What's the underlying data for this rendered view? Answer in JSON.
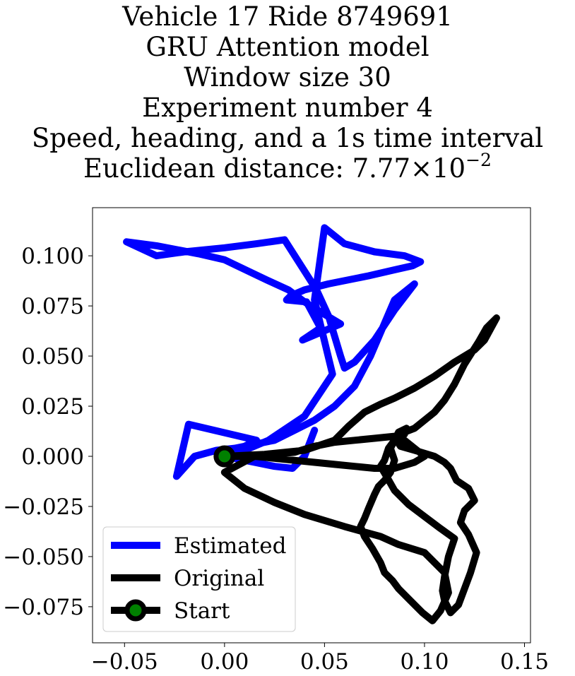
{
  "chart_data": {
    "type": "line",
    "title_lines": [
      "Vehicle 17 Ride 8749691",
      "GRU Attention model",
      "Window size 30",
      "Experiment number 4",
      "Speed, heading, and a 1s time interval"
    ],
    "title_distance_prefix": "Euclidean distance: 7.77×10",
    "title_distance_exponent": "−2",
    "xlim": [
      -0.066,
      0.153
    ],
    "ylim": [
      -0.093,
      0.124
    ],
    "xticks": [
      -0.05,
      0.0,
      0.05,
      0.1,
      0.15
    ],
    "xtick_labels": [
      "−0.05",
      "0.00",
      "0.05",
      "0.10",
      "0.15"
    ],
    "yticks": [
      -0.075,
      -0.05,
      -0.025,
      0.0,
      0.025,
      0.05,
      0.075,
      0.1
    ],
    "ytick_labels": [
      "−0.075",
      "−0.050",
      "−0.025",
      "0.000",
      "0.025",
      "0.050",
      "0.075",
      "0.100"
    ],
    "grid": false,
    "legend_position": "lower-left",
    "series": [
      {
        "name": "Estimated",
        "color": "#0000ff",
        "x": [
          0.0,
          0.01,
          0.022,
          0.04,
          0.054,
          0.045,
          0.05,
          0.06,
          0.075,
          0.09,
          0.098,
          0.094,
          0.085,
          0.072,
          0.052,
          0.04,
          0.033,
          0.031,
          0.041,
          0.048,
          0.039,
          0.058,
          0.048,
          0.04,
          0.032,
          0.021,
          0.0,
          -0.013,
          -0.034,
          -0.049,
          -0.034,
          -0.02,
          0.0,
          0.016,
          0.03,
          0.046,
          0.052,
          0.058,
          0.06,
          0.065,
          0.075,
          0.085,
          0.095,
          0.085,
          0.073,
          0.065,
          0.055,
          0.045,
          0.035,
          0.025,
          0.015,
          0.005,
          -0.004,
          -0.015,
          -0.024,
          -0.018,
          0.016,
          0.0,
          0.015,
          0.025,
          0.034,
          0.04,
          0.045
        ],
        "y": [
          0.0,
          0.003,
          0.008,
          0.02,
          0.041,
          0.078,
          0.114,
          0.106,
          0.102,
          0.1,
          0.097,
          0.095,
          0.093,
          0.09,
          0.086,
          0.083,
          0.08,
          0.078,
          0.077,
          0.064,
          0.058,
          0.066,
          0.072,
          0.077,
          0.083,
          0.088,
          0.098,
          0.101,
          0.105,
          0.107,
          0.1,
          0.102,
          0.104,
          0.106,
          0.108,
          0.083,
          0.07,
          0.05,
          0.044,
          0.047,
          0.058,
          0.073,
          0.086,
          0.078,
          0.05,
          0.035,
          0.025,
          0.018,
          0.013,
          0.008,
          0.006,
          0.004,
          0.003,
          0.0,
          -0.01,
          0.016,
          0.008,
          0.0,
          -0.003,
          -0.005,
          -0.006,
          0.0,
          0.013
        ]
      },
      {
        "name": "Original",
        "color": "#000000",
        "x": [
          0.0,
          0.02,
          0.04,
          0.055,
          0.062,
          0.07,
          0.078,
          0.085,
          0.095,
          0.105,
          0.115,
          0.125,
          0.13,
          0.136,
          0.131,
          0.127,
          0.12,
          0.115,
          0.11,
          0.105,
          0.1,
          0.095,
          0.09,
          0.088,
          0.085,
          0.082,
          0.08,
          0.078,
          0.081,
          0.085,
          0.092,
          0.1,
          0.108,
          0.115,
          0.112,
          0.11,
          0.109,
          0.11,
          0.113,
          0.117,
          0.12,
          0.123,
          0.126,
          0.122,
          0.118,
          0.12,
          0.125,
          0.122,
          0.116,
          0.113,
          0.11,
          0.105,
          0.095,
          0.088,
          0.086,
          0.09,
          0.091,
          0.087,
          0.085,
          0.083,
          0.085,
          0.083,
          0.08,
          0.077,
          0.075,
          0.072,
          0.07,
          0.068,
          0.07,
          0.074,
          0.078,
          0.08,
          0.084,
          0.087,
          0.093,
          0.099,
          0.104,
          0.108,
          0.112,
          0.11,
          0.1,
          0.087,
          0.078,
          0.06,
          0.04,
          0.025,
          0.01,
          0.0,
          0.015,
          0.035,
          0.045,
          0.055,
          0.065,
          0.075,
          0.085,
          0.09,
          0.095,
          0.1,
          0.095,
          0.085,
          0.075,
          0.065,
          0.055,
          0.045,
          0.035,
          0.025,
          0.015,
          0.005,
          0.0
        ],
        "y": [
          0.0,
          0.001,
          0.003,
          0.008,
          0.015,
          0.022,
          0.026,
          0.029,
          0.034,
          0.04,
          0.047,
          0.053,
          0.058,
          0.069,
          0.064,
          0.057,
          0.046,
          0.036,
          0.028,
          0.022,
          0.018,
          0.014,
          0.012,
          0.011,
          0.008,
          0.004,
          -0.002,
          -0.005,
          -0.01,
          -0.017,
          -0.024,
          -0.03,
          -0.036,
          -0.041,
          -0.05,
          -0.06,
          -0.067,
          -0.072,
          -0.078,
          -0.074,
          -0.066,
          -0.058,
          -0.048,
          -0.039,
          -0.033,
          -0.027,
          -0.022,
          -0.016,
          -0.012,
          -0.006,
          -0.003,
          0.0,
          0.003,
          0.005,
          0.008,
          0.011,
          0.014,
          0.012,
          0.008,
          0.004,
          -0.002,
          -0.008,
          -0.012,
          -0.015,
          -0.019,
          -0.026,
          -0.031,
          -0.035,
          -0.04,
          -0.046,
          -0.053,
          -0.058,
          -0.062,
          -0.066,
          -0.072,
          -0.078,
          -0.082,
          -0.077,
          -0.068,
          -0.058,
          -0.048,
          -0.044,
          -0.04,
          -0.035,
          -0.029,
          -0.023,
          -0.016,
          -0.008,
          0.0,
          0.002,
          0.005,
          0.007,
          0.008,
          0.009,
          0.01,
          0.008,
          0.004,
          0.0,
          -0.003,
          -0.006,
          -0.006,
          -0.005,
          -0.004,
          -0.003,
          -0.002,
          -0.001,
          0.0,
          0.0,
          0.0
        ]
      },
      {
        "name": "Start",
        "color": "#000000",
        "marker_color": "#008000",
        "x": [
          0.0
        ],
        "y": [
          0.0
        ]
      }
    ]
  }
}
